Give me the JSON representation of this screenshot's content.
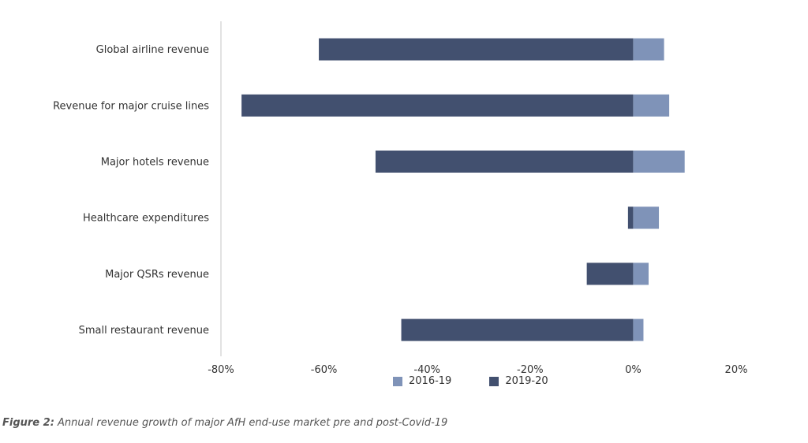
{
  "chart_data": {
    "type": "bar",
    "orientation": "horizontal",
    "stacked": true,
    "categories": [
      "Global airline revenue",
      "Revenue for major cruise lines",
      "Major hotels revenue",
      "Healthcare expenditures",
      "Major QSRs revenue",
      "Small restaurant revenue"
    ],
    "series": [
      {
        "name": "2016-19",
        "color": "#7f93b8",
        "values": [
          6,
          7,
          10,
          5,
          3,
          2
        ]
      },
      {
        "name": "2019-20",
        "color": "#42506f",
        "values": [
          -61,
          -76,
          -50,
          -1,
          -9,
          -45
        ]
      }
    ],
    "xlim": [
      -80,
      20
    ],
    "xticks": [
      -80,
      -60,
      -40,
      -20,
      0,
      20
    ],
    "xtick_labels": [
      "-80%",
      "-60%",
      "-40%",
      "-20%",
      "0%",
      "20%"
    ],
    "legend_position": "bottom",
    "grid": false
  },
  "caption": {
    "label": "Figure 2:",
    "text": " Annual revenue growth of major AfH end-use market pre and post-Covid-19"
  }
}
